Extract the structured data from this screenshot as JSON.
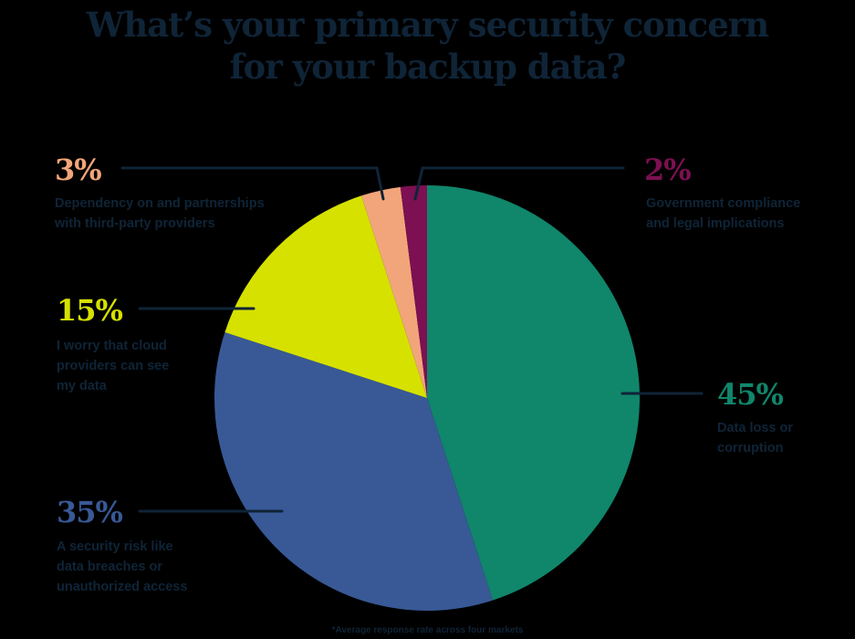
{
  "title": {
    "line1": "What’s your primary security concern",
    "line2": "for your backup data?"
  },
  "labels": [
    {
      "pct": "45%",
      "lines": [
        "Data loss or",
        "corruption"
      ],
      "color": "#10866B"
    },
    {
      "pct": "35%",
      "lines": [
        "A security risk like",
        "data breaches or",
        "unauthorized access"
      ],
      "color": "#385996"
    },
    {
      "pct": "15%",
      "lines": [
        "I worry that cloud",
        "providers can see",
        "my data"
      ],
      "color": "#D6E100"
    },
    {
      "pct": "3%",
      "lines": [
        "Dependency on and partnerships",
        "with third-party providers"
      ],
      "color": "#F2A57A"
    },
    {
      "pct": "2%",
      "lines": [
        "Government compliance",
        "and legal implications"
      ],
      "color": "#7C1052"
    }
  ],
  "footnote": "*Average response rate across four markets",
  "colors": {
    "text": "#0F2437",
    "leader_line": "#0F2437",
    "background": "#000000"
  },
  "chart_data": {
    "type": "pie",
    "title": "What’s your primary security concern for your backup data?",
    "categories": [
      "Data loss or corruption",
      "A security risk like data breaches or unauthorized access",
      "I worry that cloud providers can see my data",
      "Dependency on and partnerships with third-party providers",
      "Government compliance and legal implications"
    ],
    "values": [
      45,
      35,
      15,
      3,
      2
    ],
    "colors": [
      "#10866B",
      "#385996",
      "#D6E100",
      "#F2A57A",
      "#7C1052"
    ],
    "start_angle": "12 o'clock",
    "direction": "clockwise",
    "unit": "%",
    "annotation": "*Average response rate across four markets"
  }
}
